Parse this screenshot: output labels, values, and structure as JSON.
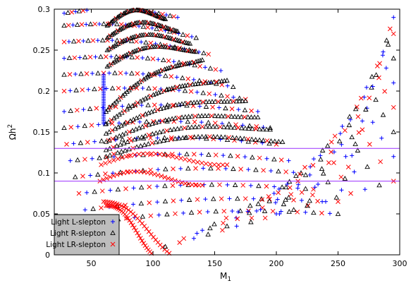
{
  "chart_data": {
    "type": "scatter",
    "title": "",
    "xlabel": "M",
    "xlabel_sub": "1",
    "ylabel": "Ωh",
    "ylabel_sup": "2",
    "xlim": [
      20,
      300
    ],
    "ylim": [
      0,
      0.3
    ],
    "xticks": [
      50,
      100,
      150,
      200,
      250,
      300
    ],
    "yticks": [
      0,
      0.05,
      0.1,
      0.15,
      0.2,
      0.25,
      0.3
    ],
    "ytick_labels": [
      "0",
      "0.05",
      "0.1",
      "0.15",
      "0.2",
      "0.25",
      "0.3"
    ],
    "grid": false,
    "legend_position": "bottom-left",
    "reference_lines": [
      {
        "y": 0.13,
        "color": "#9b30ff"
      },
      {
        "y": 0.09,
        "color": "#9b30ff"
      }
    ],
    "series": [
      {
        "name": "Light L-slepton",
        "marker": "plus",
        "color": "#0000ff"
      },
      {
        "name": "Light R-slepton",
        "marker": "triangle",
        "color": "#000000"
      },
      {
        "name": "Light LR-slepton",
        "marker": "cross",
        "color": "#ff0000"
      }
    ],
    "curves": [
      {
        "x_start": 28,
        "y_start": 0.295,
        "x_end": 120,
        "y_end": 0.29,
        "kind": "standard"
      },
      {
        "x_start": 28,
        "y_start": 0.28,
        "x_end": 135,
        "y_end": 0.265,
        "kind": "standard"
      },
      {
        "x_start": 28,
        "y_start": 0.26,
        "x_end": 145,
        "y_end": 0.245,
        "kind": "standard"
      },
      {
        "x_start": 28,
        "y_start": 0.24,
        "x_end": 155,
        "y_end": 0.225,
        "kind": "standard"
      },
      {
        "x_start": 28,
        "y_start": 0.22,
        "x_end": 165,
        "y_end": 0.205,
        "kind": "standard"
      },
      {
        "x_start": 28,
        "y_start": 0.2,
        "x_end": 175,
        "y_end": 0.19,
        "kind": "standard"
      },
      {
        "x_start": 28,
        "y_start": 0.175,
        "x_end": 185,
        "y_end": 0.175,
        "kind": "standard"
      },
      {
        "x_start": 28,
        "y_start": 0.155,
        "x_end": 195,
        "y_end": 0.155,
        "kind": "standard"
      },
      {
        "x_start": 30,
        "y_start": 0.135,
        "x_end": 200,
        "y_end": 0.135,
        "kind": "standard"
      },
      {
        "x_start": 33,
        "y_start": 0.115,
        "x_end": 210,
        "y_end": 0.115,
        "kind": "standard"
      },
      {
        "x_start": 37,
        "y_start": 0.095,
        "x_end": 220,
        "y_end": 0.1,
        "kind": "standard"
      },
      {
        "x_start": 40,
        "y_start": 0.075,
        "x_end": 230,
        "y_end": 0.08,
        "kind": "standard"
      },
      {
        "x_start": 45,
        "y_start": 0.055,
        "x_end": 240,
        "y_end": 0.065,
        "kind": "standard"
      },
      {
        "x_start": 52,
        "y_start": 0.04,
        "x_end": 250,
        "y_end": 0.05,
        "kind": "standard"
      },
      {
        "x_start": 62,
        "y_start": 0.175,
        "x_end": 140,
        "y_end": 0.245,
        "kind": "dense"
      },
      {
        "x_start": 62,
        "y_start": 0.16,
        "x_end": 160,
        "y_end": 0.22,
        "kind": "dense"
      },
      {
        "x_start": 62,
        "y_start": 0.148,
        "x_end": 175,
        "y_end": 0.195,
        "kind": "dense"
      },
      {
        "x_start": 62,
        "y_start": 0.138,
        "x_end": 185,
        "y_end": 0.175,
        "kind": "dense"
      },
      {
        "x_start": 62,
        "y_start": 0.128,
        "x_end": 195,
        "y_end": 0.16,
        "kind": "dense"
      },
      {
        "x_start": 62,
        "y_start": 0.12,
        "x_end": 205,
        "y_end": 0.145,
        "kind": "dense"
      },
      {
        "x_start": 63,
        "y_start": 0.28,
        "x_end": 110,
        "y_end": 0.295,
        "kind": "dense"
      },
      {
        "x_start": 63,
        "y_start": 0.265,
        "x_end": 120,
        "y_end": 0.28,
        "kind": "dense"
      },
      {
        "x_start": 63,
        "y_start": 0.25,
        "x_end": 130,
        "y_end": 0.265,
        "kind": "dense"
      },
      {
        "x_start": 63,
        "y_start": 0.23,
        "x_end": 135,
        "y_end": 0.255,
        "kind": "dense"
      },
      {
        "x_start": 58,
        "y_start": 0.11,
        "x_end": 160,
        "y_end": 0.12,
        "kind": "fall"
      },
      {
        "x_start": 57,
        "y_start": 0.09,
        "x_end": 140,
        "y_end": 0.095,
        "kind": "fall"
      },
      {
        "x_start": 60,
        "y_start": 0.065,
        "x_end": 115,
        "y_end": 0.01,
        "kind": "fall"
      },
      {
        "x_start": 62,
        "y_start": 0.06,
        "x_end": 100,
        "y_end": 0.01,
        "kind": "fall"
      },
      {
        "x_start": 110,
        "y_start": 0.01,
        "x_end": 295,
        "y_end": 0.09,
        "kind": "edge"
      },
      {
        "x_start": 125,
        "y_start": 0.02,
        "x_end": 295,
        "y_end": 0.12,
        "kind": "edge"
      },
      {
        "x_start": 140,
        "y_start": 0.03,
        "x_end": 295,
        "y_end": 0.15,
        "kind": "edge"
      },
      {
        "x_start": 160,
        "y_start": 0.035,
        "x_end": 295,
        "y_end": 0.18,
        "kind": "edge"
      },
      {
        "x_start": 180,
        "y_start": 0.045,
        "x_end": 295,
        "y_end": 0.21,
        "kind": "edge"
      },
      {
        "x_start": 200,
        "y_start": 0.05,
        "x_end": 295,
        "y_end": 0.24,
        "kind": "edge"
      },
      {
        "x_start": 225,
        "y_start": 0.06,
        "x_end": 295,
        "y_end": 0.27,
        "kind": "edge"
      },
      {
        "x_start": 250,
        "y_start": 0.065,
        "x_end": 295,
        "y_end": 0.29,
        "kind": "edge"
      }
    ],
    "vertical_band": {
      "x": 60,
      "y_start": 0.16,
      "y_end": 0.222,
      "color": "#0000ff"
    }
  }
}
